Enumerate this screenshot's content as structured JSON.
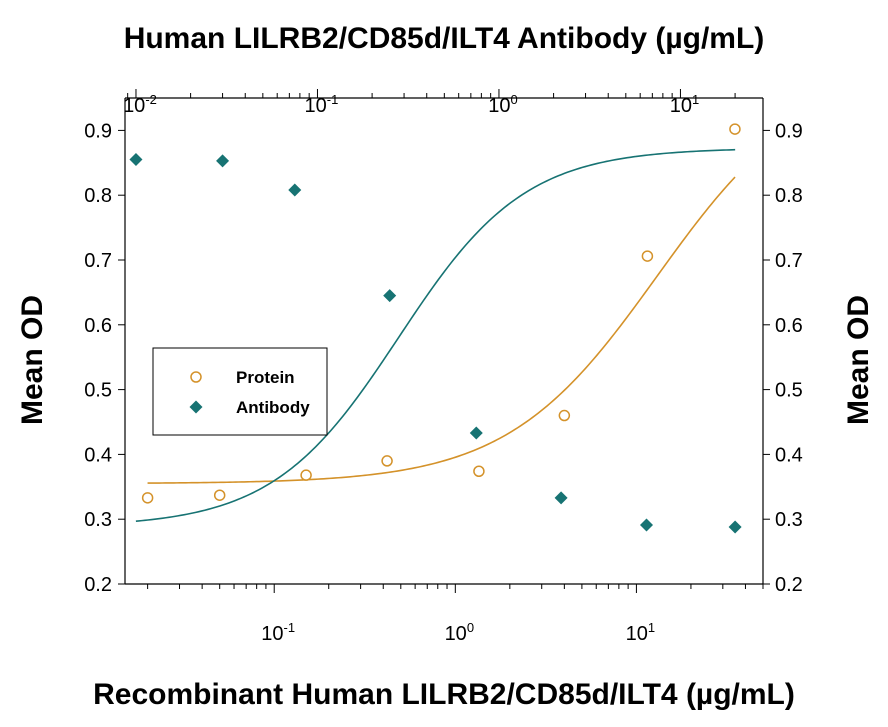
{
  "chart_data": {
    "type": "scatter",
    "title": "Human LILRB2/CD85d/ILT4 Antibody (µg/mL)",
    "xlabel": "Recombinant Human LILRB2/CD85d/ILT4 (µg/mL)",
    "ylabel_left": "Mean OD",
    "ylabel_right": "Mean OD",
    "x_scale": "log",
    "x_range": [
      0.015,
      50
    ],
    "x_ticks": [
      {
        "base": "10",
        "exp": "-1",
        "value": 0.1
      },
      {
        "base": "10",
        "exp": "0",
        "value": 1
      },
      {
        "base": "10",
        "exp": "1",
        "value": 10
      }
    ],
    "x2_scale": "log",
    "x2_range": [
      0.0087,
      28.5
    ],
    "x2_ticks": [
      {
        "base": "10",
        "exp": "-2",
        "value": 0.01
      },
      {
        "base": "10",
        "exp": "-1",
        "value": 0.1
      },
      {
        "base": "10",
        "exp": "0",
        "value": 1
      },
      {
        "base": "10",
        "exp": "1",
        "value": 10
      }
    ],
    "y_range": [
      0.2,
      0.95
    ],
    "y_ticks": [
      "0.2",
      "0.3",
      "0.4",
      "0.5",
      "0.6",
      "0.7",
      "0.8",
      "0.9"
    ],
    "grid": false,
    "legend_position": "middle-left",
    "series": [
      {
        "name": "Protein",
        "axis": "bottom",
        "marker": "open-circle",
        "color": "#d4922a",
        "x": [
          0.02,
          0.05,
          0.15,
          0.42,
          1.35,
          4.0,
          11.5,
          35.0
        ],
        "y": [
          0.333,
          0.337,
          0.368,
          0.39,
          0.374,
          0.46,
          0.706,
          0.902
        ],
        "fit": {
          "bottom": 0.355,
          "top": 0.995,
          "ec50": 13.0,
          "hill": 1.05
        }
      },
      {
        "name": "Antibody",
        "axis": "top",
        "marker": "filled-diamond",
        "color": "#177373",
        "x": [
          0.01,
          0.03,
          0.075,
          0.25,
          0.75,
          2.2,
          6.5,
          20.0
        ],
        "y": [
          0.855,
          0.853,
          0.808,
          0.645,
          0.433,
          0.333,
          0.291,
          0.288
        ],
        "fit": {
          "bottom": 0.288,
          "top": 0.873,
          "ec50": 0.28,
          "hill": 1.25
        }
      }
    ]
  }
}
